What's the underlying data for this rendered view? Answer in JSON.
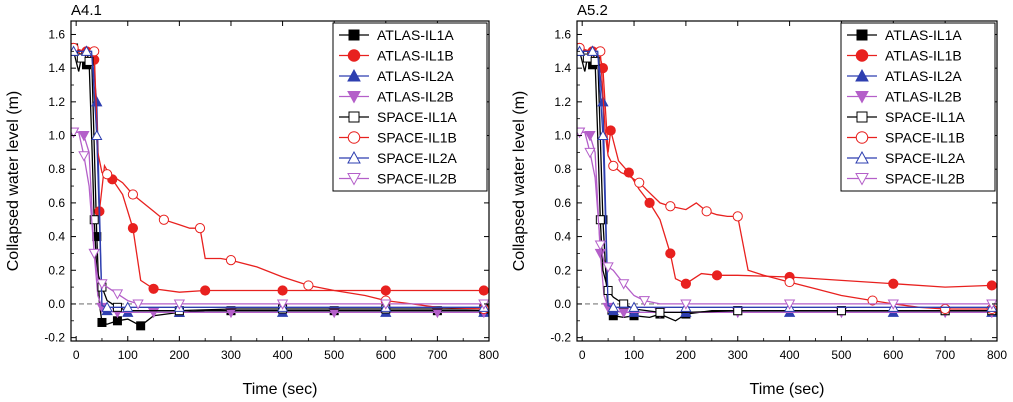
{
  "colors": {
    "IL1": "#000000",
    "IL1B": "#e8211f",
    "IL2A": "#2e3fb0",
    "IL2B": "#b45fc9"
  },
  "series_defs": [
    {
      "name": "ATLAS-IL1A",
      "color": "#000000",
      "marker": "square",
      "filled": true
    },
    {
      "name": "ATLAS-IL1B",
      "color": "#e8211f",
      "marker": "circle",
      "filled": true
    },
    {
      "name": "ATLAS-IL2A",
      "color": "#2e3fb0",
      "marker": "triangle-up",
      "filled": true
    },
    {
      "name": "ATLAS-IL2B",
      "color": "#b45fc9",
      "marker": "triangle-down",
      "filled": true
    },
    {
      "name": "SPACE-IL1A",
      "color": "#000000",
      "marker": "square",
      "filled": false
    },
    {
      "name": "SPACE-IL1B",
      "color": "#e8211f",
      "marker": "circle",
      "filled": false
    },
    {
      "name": "SPACE-IL2A",
      "color": "#2e3fb0",
      "marker": "triangle-up",
      "filled": false
    },
    {
      "name": "SPACE-IL2B",
      "color": "#b45fc9",
      "marker": "triangle-down",
      "filled": false
    }
  ],
  "chart_data": [
    {
      "type": "line",
      "title": "A4.1",
      "xlabel": "Time (sec)",
      "ylabel": "Collapsed water level (m)",
      "xlim": [
        -10,
        800
      ],
      "ylim": [
        -0.22,
        1.68
      ],
      "xticks": [
        0,
        100,
        200,
        300,
        400,
        500,
        600,
        700,
        800
      ],
      "yticks": [
        -0.2,
        0.0,
        0.2,
        0.4,
        0.6,
        0.8,
        1.0,
        1.2,
        1.4,
        1.6
      ],
      "ytick_labels": [
        "-0.2",
        "0.0",
        "0.2",
        "0.4",
        "0.6",
        "0.8",
        "1.0",
        "1.2",
        "1.4",
        "1.6"
      ],
      "legend_position": "top-right",
      "series": [
        {
          "name": "ATLAS-IL1A",
          "x": [
            -5,
            10,
            20,
            30,
            40,
            45,
            50,
            60,
            80,
            100,
            125,
            150,
            200,
            250,
            300,
            400,
            500,
            600,
            700,
            790
          ],
          "y": [
            1.52,
            1.5,
            1.42,
            1.48,
            0.4,
            0.0,
            -0.11,
            -0.12,
            -0.1,
            -0.09,
            -0.13,
            -0.07,
            -0.05,
            -0.04,
            -0.04,
            -0.04,
            -0.04,
            -0.04,
            -0.04,
            -0.04
          ]
        },
        {
          "name": "ATLAS-IL1B",
          "x": [
            -5,
            10,
            20,
            30,
            35,
            40,
            45,
            55,
            70,
            90,
            110,
            125,
            150,
            200,
            250,
            300,
            400,
            500,
            600,
            700,
            790
          ],
          "y": [
            1.52,
            1.48,
            1.5,
            1.52,
            1.45,
            1.0,
            0.55,
            0.82,
            0.74,
            0.65,
            0.45,
            0.14,
            0.09,
            0.07,
            0.08,
            0.08,
            0.08,
            0.08,
            0.08,
            0.08,
            0.08
          ]
        },
        {
          "name": "ATLAS-IL2A",
          "x": [
            -5,
            10,
            20,
            30,
            40,
            50,
            60,
            80,
            100,
            150,
            200,
            300,
            400,
            500,
            600,
            700,
            790
          ],
          "y": [
            1.5,
            1.5,
            1.5,
            1.5,
            1.2,
            -0.02,
            -0.04,
            -0.05,
            -0.05,
            -0.05,
            -0.05,
            -0.05,
            -0.05,
            -0.05,
            -0.05,
            -0.05,
            -0.05
          ]
        },
        {
          "name": "ATLAS-IL2B",
          "x": [
            -5,
            5,
            15,
            25,
            35,
            42,
            50,
            60,
            80,
            100,
            150,
            200,
            300,
            400,
            500,
            600,
            700,
            790
          ],
          "y": [
            1.02,
            1.02,
            1.0,
            0.9,
            0.3,
            0.05,
            -0.02,
            -0.04,
            -0.05,
            -0.05,
            -0.05,
            -0.05,
            -0.05,
            -0.05,
            -0.05,
            -0.05,
            -0.05,
            -0.05
          ]
        },
        {
          "name": "SPACE-IL1A",
          "x": [
            -5,
            5,
            10,
            20,
            25,
            30,
            35,
            40,
            50,
            60,
            80,
            100,
            200,
            300,
            400,
            500,
            600,
            700,
            790
          ],
          "y": [
            1.5,
            1.38,
            1.46,
            1.5,
            1.44,
            1.0,
            0.5,
            0.2,
            0.1,
            0.02,
            -0.02,
            -0.04,
            -0.04,
            -0.03,
            -0.03,
            -0.03,
            -0.03,
            -0.03,
            -0.03
          ]
        },
        {
          "name": "SPACE-IL1B",
          "x": [
            -5,
            15,
            25,
            35,
            42,
            50,
            60,
            75,
            90,
            110,
            130,
            150,
            170,
            200,
            220,
            240,
            250,
            280,
            300,
            350,
            400,
            450,
            500,
            560,
            600,
            650,
            700,
            790
          ],
          "y": [
            1.52,
            1.5,
            1.52,
            1.5,
            0.9,
            0.78,
            0.77,
            0.75,
            0.72,
            0.65,
            0.6,
            0.55,
            0.5,
            0.47,
            0.45,
            0.45,
            0.27,
            0.27,
            0.26,
            0.22,
            0.16,
            0.11,
            0.08,
            0.05,
            0.02,
            0.0,
            -0.02,
            -0.03
          ]
        },
        {
          "name": "SPACE-IL2A",
          "x": [
            -5,
            10,
            20,
            30,
            40,
            50,
            60,
            80,
            100,
            150,
            200,
            300,
            400,
            500,
            600,
            700,
            790
          ],
          "y": [
            1.5,
            1.5,
            1.5,
            1.5,
            1.0,
            -0.01,
            -0.02,
            -0.02,
            -0.02,
            -0.02,
            -0.02,
            -0.02,
            -0.02,
            -0.02,
            -0.02,
            -0.02,
            -0.02
          ]
        },
        {
          "name": "SPACE-IL2B",
          "x": [
            -5,
            5,
            15,
            25,
            35,
            42,
            50,
            60,
            80,
            100,
            120,
            150,
            200,
            300,
            400,
            500,
            600,
            700,
            790
          ],
          "y": [
            1.02,
            1.02,
            0.88,
            0.7,
            0.3,
            0.15,
            0.12,
            0.1,
            0.06,
            0.02,
            0.0,
            0.0,
            0.0,
            0.0,
            0.0,
            0.0,
            0.0,
            0.0,
            0.0
          ]
        }
      ]
    },
    {
      "type": "line",
      "title": "A5.2",
      "xlabel": "Time (sec)",
      "ylabel": "Collapsed water level (m)",
      "xlim": [
        -10,
        800
      ],
      "ylim": [
        -0.22,
        1.68
      ],
      "xticks": [
        0,
        100,
        200,
        300,
        400,
        500,
        600,
        700,
        800
      ],
      "yticks": [
        -0.2,
        0.0,
        0.2,
        0.4,
        0.6,
        0.8,
        1.0,
        1.2,
        1.4,
        1.6
      ],
      "ytick_labels": [
        "-0.2",
        "0.0",
        "0.2",
        "0.4",
        "0.6",
        "0.8",
        "1.0",
        "1.2",
        "1.4",
        "1.6"
      ],
      "legend_position": "top-right",
      "series": [
        {
          "name": "ATLAS-IL1A",
          "x": [
            -5,
            10,
            20,
            30,
            40,
            50,
            60,
            80,
            100,
            130,
            150,
            180,
            200,
            250,
            300,
            400,
            500,
            600,
            700,
            790
          ],
          "y": [
            1.5,
            1.5,
            1.42,
            1.48,
            0.5,
            -0.06,
            -0.07,
            -0.08,
            -0.07,
            -0.08,
            -0.06,
            -0.1,
            -0.06,
            -0.04,
            -0.04,
            -0.04,
            -0.04,
            -0.04,
            -0.04,
            -0.04
          ]
        },
        {
          "name": "ATLAS-IL1B",
          "x": [
            -5,
            10,
            20,
            30,
            40,
            50,
            55,
            70,
            90,
            110,
            130,
            150,
            170,
            180,
            200,
            230,
            260,
            300,
            400,
            500,
            600,
            700,
            790
          ],
          "y": [
            1.52,
            1.5,
            1.5,
            1.52,
            1.4,
            0.9,
            1.03,
            0.85,
            0.78,
            0.68,
            0.6,
            0.5,
            0.3,
            0.15,
            0.12,
            0.18,
            0.17,
            0.17,
            0.16,
            0.14,
            0.12,
            0.1,
            0.11
          ]
        },
        {
          "name": "ATLAS-IL2A",
          "x": [
            -5,
            10,
            20,
            30,
            40,
            50,
            60,
            80,
            100,
            150,
            200,
            300,
            400,
            500,
            600,
            700,
            790
          ],
          "y": [
            1.5,
            1.5,
            1.5,
            1.5,
            1.2,
            -0.02,
            -0.04,
            -0.05,
            -0.05,
            -0.05,
            -0.05,
            -0.05,
            -0.05,
            -0.05,
            -0.05,
            -0.05,
            -0.05
          ]
        },
        {
          "name": "ATLAS-IL2B",
          "x": [
            -5,
            5,
            15,
            25,
            35,
            42,
            50,
            60,
            80,
            100,
            150,
            200,
            300,
            400,
            500,
            600,
            700,
            790
          ],
          "y": [
            1.02,
            1.02,
            1.0,
            0.9,
            0.3,
            0.05,
            -0.02,
            -0.04,
            -0.05,
            -0.05,
            -0.05,
            -0.05,
            -0.05,
            -0.05,
            -0.05,
            -0.05,
            -0.05,
            -0.05
          ]
        },
        {
          "name": "SPACE-IL1A",
          "x": [
            -5,
            5,
            10,
            20,
            25,
            30,
            35,
            40,
            50,
            60,
            80,
            100,
            150,
            200,
            300,
            400,
            500,
            600,
            700,
            790
          ],
          "y": [
            1.5,
            1.38,
            1.46,
            1.5,
            1.44,
            1.0,
            0.5,
            0.2,
            0.08,
            0.04,
            0.0,
            -0.03,
            -0.05,
            -0.05,
            -0.04,
            -0.04,
            -0.04,
            -0.04,
            -0.04,
            -0.04
          ]
        },
        {
          "name": "SPACE-IL1B",
          "x": [
            -5,
            15,
            25,
            35,
            45,
            50,
            60,
            75,
            90,
            110,
            130,
            150,
            170,
            200,
            220,
            240,
            260,
            280,
            300,
            320,
            350,
            400,
            450,
            500,
            560,
            600,
            650,
            700,
            790
          ],
          "y": [
            1.52,
            1.5,
            1.52,
            1.5,
            1.0,
            0.88,
            0.82,
            0.78,
            0.76,
            0.72,
            0.66,
            0.6,
            0.58,
            0.56,
            0.6,
            0.55,
            0.53,
            0.52,
            0.52,
            0.2,
            0.17,
            0.13,
            0.09,
            0.05,
            0.02,
            0.0,
            -0.02,
            -0.03,
            -0.03
          ]
        },
        {
          "name": "SPACE-IL2A",
          "x": [
            -5,
            10,
            20,
            30,
            40,
            50,
            60,
            80,
            100,
            150,
            200,
            300,
            400,
            500,
            600,
            700,
            790
          ],
          "y": [
            1.5,
            1.5,
            1.5,
            1.5,
            1.0,
            -0.01,
            -0.02,
            -0.02,
            -0.02,
            -0.02,
            -0.02,
            -0.02,
            -0.02,
            -0.02,
            -0.02,
            -0.02,
            -0.02
          ]
        },
        {
          "name": "SPACE-IL2B",
          "x": [
            -5,
            5,
            15,
            25,
            35,
            42,
            50,
            60,
            80,
            100,
            120,
            150,
            200,
            300,
            400,
            500,
            600,
            700,
            790
          ],
          "y": [
            1.02,
            1.02,
            0.9,
            0.75,
            0.35,
            0.25,
            0.22,
            0.2,
            0.12,
            0.05,
            0.02,
            0.0,
            0.0,
            0.0,
            0.0,
            0.0,
            0.0,
            0.0,
            0.0
          ]
        }
      ]
    }
  ]
}
